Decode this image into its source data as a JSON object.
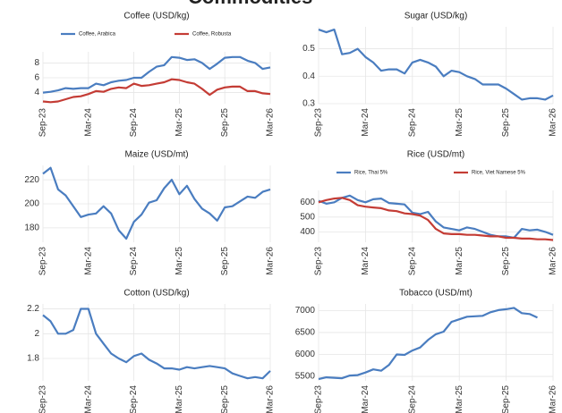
{
  "title": "Commodities",
  "chart_data": [
    {
      "type": "line",
      "title": "Coffee (USD/kg)",
      "legend": "top",
      "categories": [
        "Sep-23",
        null,
        null,
        null,
        null,
        null,
        "Mar-24",
        null,
        null,
        null,
        null,
        null,
        "Sep-24",
        null,
        null,
        null,
        null,
        null,
        "Mar-25",
        null,
        null,
        null,
        null,
        null,
        "Sep-25",
        null,
        null,
        null,
        null,
        null,
        "Mar-26"
      ],
      "series": [
        {
          "name": "Coffee, Arabica",
          "color": "#4a7dc0",
          "values": [
            4.0,
            4.1,
            4.3,
            4.6,
            4.5,
            4.6,
            4.6,
            5.2,
            5.0,
            5.4,
            5.6,
            5.7,
            6.0,
            6.0,
            6.8,
            7.5,
            7.7,
            8.8,
            8.7,
            8.4,
            8.5,
            8.0,
            7.2,
            7.9,
            8.7,
            8.8,
            8.8,
            8.3,
            8.0,
            7.2,
            7.4
          ]
        },
        {
          "name": "Coffee, Robusta",
          "color": "#c43c35",
          "values": [
            2.8,
            2.7,
            2.8,
            3.1,
            3.4,
            3.5,
            3.8,
            4.2,
            4.1,
            4.5,
            4.7,
            4.6,
            5.2,
            4.9,
            5.0,
            5.2,
            5.4,
            5.8,
            5.7,
            5.4,
            5.2,
            4.5,
            3.7,
            4.4,
            4.7,
            4.8,
            4.8,
            4.2,
            4.2,
            3.9,
            3.8
          ]
        }
      ],
      "ylim": [
        2.5,
        9.5
      ],
      "yticks": [
        4,
        6,
        8
      ],
      "grid": true
    },
    {
      "type": "line",
      "title": "Sugar (USD/kg)",
      "categories": [
        "Sep-23",
        null,
        null,
        null,
        null,
        null,
        "Mar-24",
        null,
        null,
        null,
        null,
        null,
        "Sep-24",
        null,
        null,
        null,
        null,
        null,
        "Mar-25",
        null,
        null,
        null,
        null,
        null,
        "Sep-25",
        null,
        null,
        null,
        null,
        null,
        "Mar-26"
      ],
      "series": [
        {
          "name": "Sugar",
          "color": "#4a7dc0",
          "values": [
            0.57,
            0.56,
            0.57,
            0.48,
            0.485,
            0.5,
            0.47,
            0.45,
            0.42,
            0.425,
            0.425,
            0.41,
            0.45,
            0.46,
            0.45,
            0.435,
            0.4,
            0.42,
            0.415,
            0.4,
            0.39,
            0.37,
            0.37,
            0.37,
            0.355,
            0.335,
            0.315,
            0.32,
            0.32,
            0.315,
            0.33
          ]
        }
      ],
      "ylim": [
        0.3,
        0.58
      ],
      "yticks": [
        0.3,
        0.4,
        0.5
      ],
      "grid": true
    },
    {
      "type": "line",
      "title": "Maize (USD/mt)",
      "categories": [
        "Sep-23",
        null,
        null,
        null,
        null,
        null,
        "Mar-24",
        null,
        null,
        null,
        null,
        null,
        "Sep-24",
        null,
        null,
        null,
        null,
        null,
        "Mar-25",
        null,
        null,
        null,
        null,
        null,
        "Sep-25",
        null,
        null,
        null,
        null,
        null,
        "Mar-26"
      ],
      "series": [
        {
          "name": "Maize",
          "color": "#4a7dc0",
          "values": [
            225,
            230,
            212,
            207,
            198,
            189,
            191,
            192,
            198,
            192,
            178,
            171,
            185,
            191,
            201,
            203,
            213,
            220,
            208,
            215,
            204,
            196,
            192,
            186,
            197,
            198,
            202,
            206,
            205,
            210,
            212
          ]
        }
      ],
      "ylim": [
        168,
        232
      ],
      "yticks": [
        180,
        200,
        220
      ],
      "grid": true
    },
    {
      "type": "line",
      "title": "Rice (USD/mt)",
      "legend": "top",
      "categories": [
        "Sep-23",
        null,
        null,
        null,
        null,
        null,
        "Mar-24",
        null,
        null,
        null,
        null,
        null,
        "Sep-24",
        null,
        null,
        null,
        null,
        null,
        "Mar-25",
        null,
        null,
        null,
        null,
        null,
        "Sep-25",
        null,
        null,
        null,
        null,
        null,
        "Mar-26"
      ],
      "series": [
        {
          "name": "Rice, Thai 5%",
          "color": "#4a7dc0",
          "values": [
            610,
            590,
            600,
            630,
            645,
            615,
            600,
            620,
            625,
            595,
            590,
            585,
            530,
            520,
            535,
            470,
            430,
            420,
            410,
            430,
            420,
            400,
            380,
            370,
            370,
            360,
            420,
            410,
            415,
            400,
            380
          ]
        },
        {
          "name": "Rice, Viet Namese 5%",
          "color": "#c43c35",
          "values": [
            600,
            615,
            625,
            630,
            615,
            580,
            570,
            565,
            560,
            545,
            540,
            525,
            520,
            510,
            480,
            420,
            390,
            385,
            385,
            380,
            380,
            375,
            370,
            370,
            360,
            360,
            355,
            355,
            350,
            350,
            345
          ]
        }
      ],
      "ylim": [
        330,
        680
      ],
      "yticks": [
        400,
        500,
        600
      ],
      "grid": true
    },
    {
      "type": "line",
      "title": "Cotton (USD/kg)",
      "categories": [
        "Sep-23",
        null,
        null,
        null,
        null,
        null,
        "Mar-24",
        null,
        null,
        null,
        null,
        null,
        "Sep-24",
        null,
        null,
        null,
        null,
        null,
        "Mar-25",
        null,
        null,
        null,
        null,
        null,
        "Sep-25",
        null,
        null,
        null,
        null,
        null,
        "Mar-26"
      ],
      "series": [
        {
          "name": "Cotton",
          "color": "#4a7dc0",
          "values": [
            2.15,
            2.1,
            2.0,
            2.0,
            2.03,
            2.2,
            2.2,
            2.0,
            1.92,
            1.84,
            1.8,
            1.77,
            1.82,
            1.84,
            1.79,
            1.76,
            1.72,
            1.72,
            1.71,
            1.73,
            1.72,
            1.73,
            1.74,
            1.73,
            1.72,
            1.68,
            1.66,
            1.64,
            1.65,
            1.64,
            1.7
          ]
        }
      ],
      "ylim": [
        1.62,
        2.24
      ],
      "yticks": [
        1.8,
        2.0,
        2.2
      ],
      "grid": true
    },
    {
      "type": "line",
      "title": "Tobacco (USD/mt)",
      "categories": [
        "Sep-23",
        null,
        null,
        null,
        null,
        null,
        "Mar-24",
        null,
        null,
        null,
        null,
        null,
        "Sep-24",
        null,
        null,
        null,
        null,
        null,
        "Mar-25",
        null,
        null,
        null,
        null,
        null,
        "Sep-25",
        null,
        null,
        null,
        null,
        null,
        "Mar-26"
      ],
      "series": [
        {
          "name": "Tobacco",
          "color": "#4a7dc0",
          "values": [
            5440,
            5480,
            5470,
            5460,
            5520,
            5530,
            5590,
            5660,
            5630,
            5760,
            6000,
            5990,
            6090,
            6160,
            6330,
            6460,
            6520,
            6740,
            6800,
            6860,
            6870,
            6880,
            6960,
            7010,
            7030,
            7060,
            6940,
            6920,
            6840,
            null,
            null
          ]
        }
      ],
      "ylim": [
        5400,
        7150
      ],
      "yticks": [
        5500,
        6000,
        6500,
        7000
      ],
      "grid": true
    }
  ]
}
